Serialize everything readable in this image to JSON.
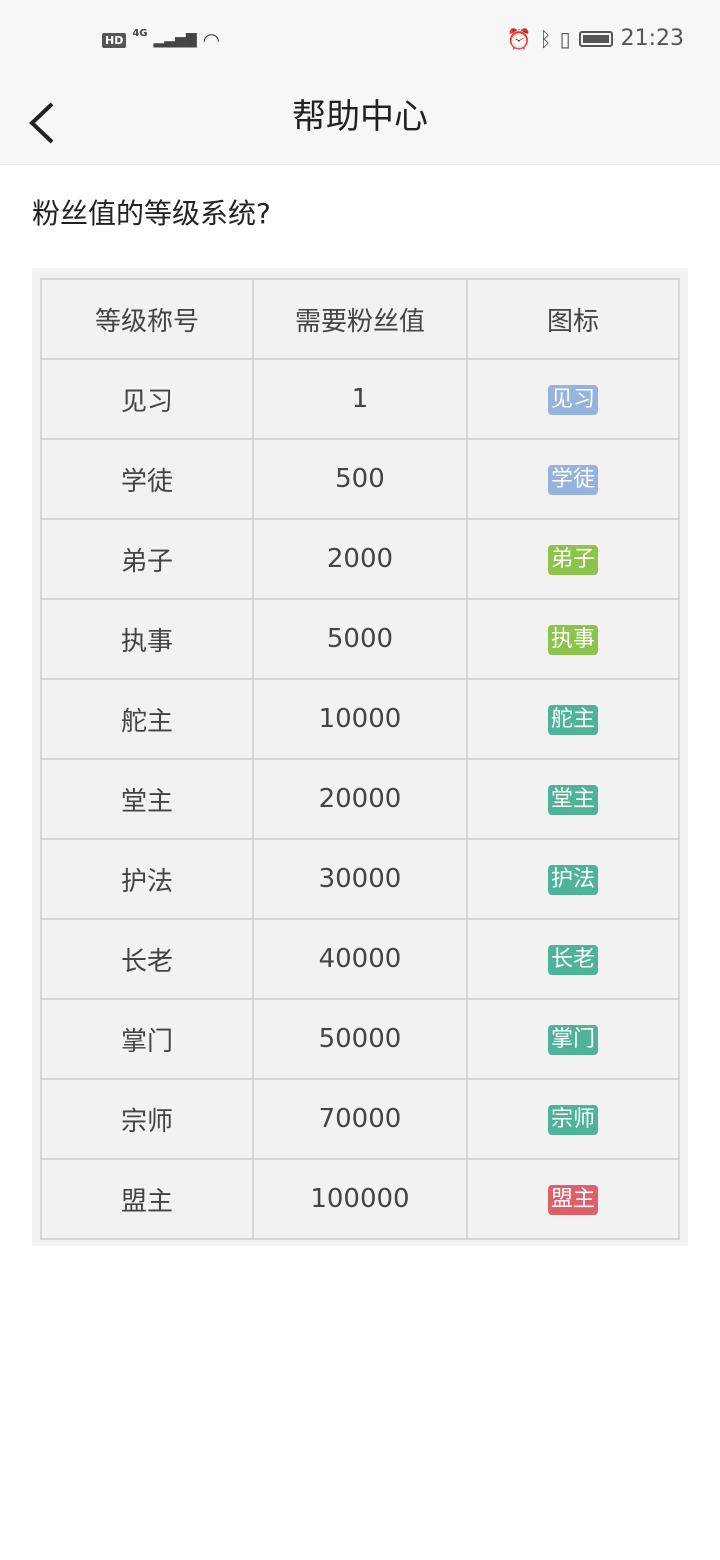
{
  "status_bar": {
    "hd": "HD",
    "network": "4G",
    "time": "21:23",
    "icons": [
      "signal-icon",
      "wifi-icon",
      "alarm-icon",
      "bluetooth-icon",
      "vibrate-icon",
      "battery-icon"
    ]
  },
  "nav": {
    "title": "帮助中心",
    "back_icon": "chevron-left-icon"
  },
  "question": "粉丝值的等级系统?",
  "table": {
    "headers": [
      "等级称号",
      "需要粉丝值",
      "图标"
    ],
    "rows": [
      {
        "name": "见习",
        "value": "1",
        "badge": "见习",
        "color": "#94b3de"
      },
      {
        "name": "学徒",
        "value": "500",
        "badge": "学徒",
        "color": "#94b3de"
      },
      {
        "name": "弟子",
        "value": "2000",
        "badge": "弟子",
        "color": "#8cc34a"
      },
      {
        "name": "执事",
        "value": "5000",
        "badge": "执事",
        "color": "#8cc34a"
      },
      {
        "name": "舵主",
        "value": "10000",
        "badge": "舵主",
        "color": "#4fb39a"
      },
      {
        "name": "堂主",
        "value": "20000",
        "badge": "堂主",
        "color": "#4fb39a"
      },
      {
        "name": "护法",
        "value": "30000",
        "badge": "护法",
        "color": "#4fb39a"
      },
      {
        "name": "长老",
        "value": "40000",
        "badge": "长老",
        "color": "#4fb39a"
      },
      {
        "name": "掌门",
        "value": "50000",
        "badge": "掌门",
        "color": "#4fb39a"
      },
      {
        "name": "宗师",
        "value": "70000",
        "badge": "宗师",
        "color": "#4fb39a"
      },
      {
        "name": "盟主",
        "value": "100000",
        "badge": "盟主",
        "color": "#e0606a"
      }
    ]
  }
}
